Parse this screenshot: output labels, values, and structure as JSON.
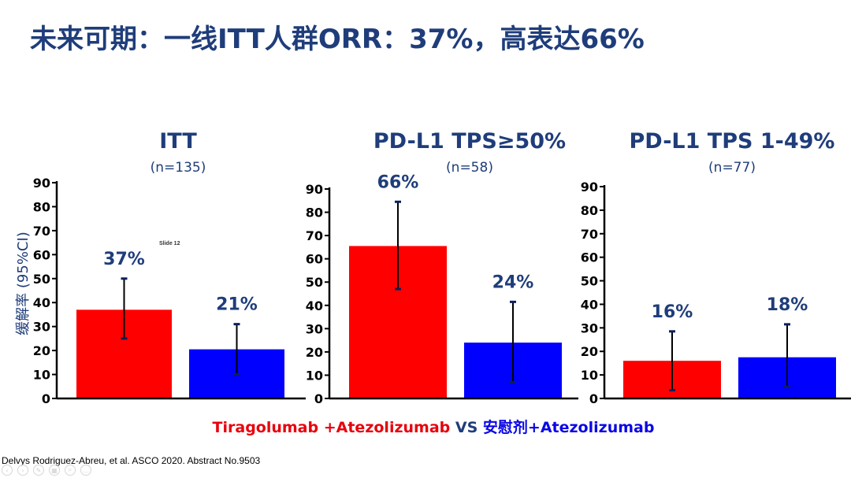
{
  "slide": {
    "title": "未来可期：一线ITT人群ORR：37%，高表达66%",
    "note": "Slide 12",
    "y_axis_label": "缓解率 (95%CI)",
    "footnote": "Delvys Rodriguez-Abreu, et al. ASCO 2020. Abstract No.9503"
  },
  "legend": {
    "arm1": "Tiragolumab +Atezolizumab",
    "vs": "VS",
    "arm2": "安慰剂+Atezolizumab",
    "arm1_color": "#e8000b",
    "arm2_color": "#0a06e6",
    "vs_color": "#1f3d7a"
  },
  "colors": {
    "bar1": "#ff0000",
    "bar2": "#0000ff",
    "title": "#1f3d7a",
    "label": "#1f3d7a"
  },
  "toolbar": [
    {
      "name": "prev-icon",
      "glyph": "‹"
    },
    {
      "name": "next-icon",
      "glyph": "›"
    },
    {
      "name": "pen-icon",
      "glyph": "✎"
    },
    {
      "name": "grid-icon",
      "glyph": "▦"
    },
    {
      "name": "zoom-icon",
      "glyph": "⌕"
    },
    {
      "name": "more-icon",
      "glyph": "…"
    }
  ],
  "chart_data": [
    {
      "type": "bar",
      "title": "ITT",
      "subtitle": "(n=135)",
      "ylim": [
        0,
        90
      ],
      "yticks": [
        0,
        10,
        20,
        30,
        40,
        50,
        60,
        70,
        80,
        90
      ],
      "series": [
        {
          "value": 37,
          "ci": [
            25,
            50
          ],
          "label": "37%"
        },
        {
          "value": 20.5,
          "ci": [
            10,
            31
          ],
          "label": "21%"
        }
      ]
    },
    {
      "type": "bar",
      "title": "PD-L1 TPS≥50%",
      "subtitle": "(n=58)",
      "ylim": [
        0,
        90
      ],
      "yticks": [
        0,
        10,
        20,
        30,
        40,
        50,
        60,
        70,
        80,
        90
      ],
      "series": [
        {
          "value": 65.5,
          "ci": [
            47,
            84.5
          ],
          "label": "66%"
        },
        {
          "value": 24,
          "ci": [
            7,
            41.5
          ],
          "label": "24%"
        }
      ]
    },
    {
      "type": "bar",
      "title": "PD-L1 TPS 1-49%",
      "subtitle": "(n=77)",
      "ylim": [
        0,
        90
      ],
      "yticks": [
        0,
        10,
        20,
        30,
        40,
        50,
        60,
        70,
        80,
        90
      ],
      "series": [
        {
          "value": 16,
          "ci": [
            3.5,
            28.5
          ],
          "label": "16%"
        },
        {
          "value": 17.5,
          "ci": [
            5,
            31.5
          ],
          "label": "18%"
        }
      ]
    }
  ]
}
